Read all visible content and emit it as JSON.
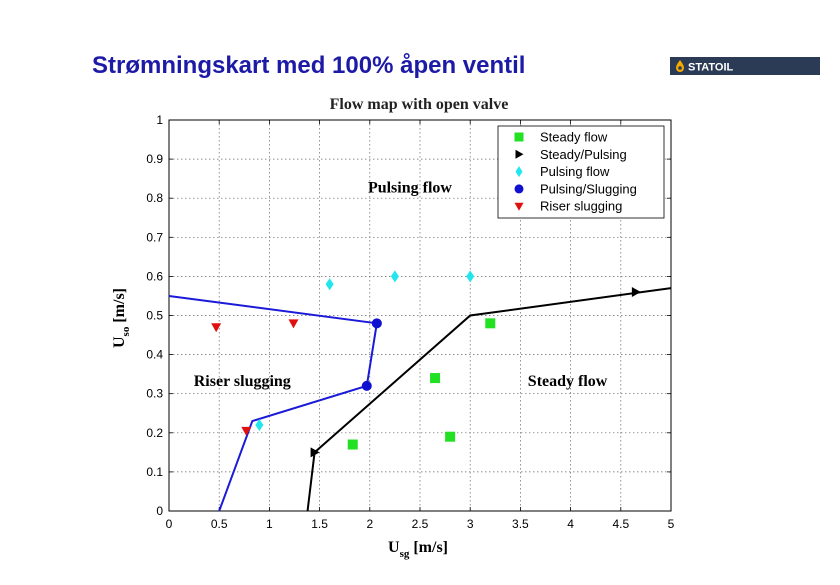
{
  "slide": {
    "title": "Strømningskart med 100% åpen ventil",
    "logo_text": "STATOIL",
    "colors": {
      "title": "#1d1aa6",
      "logo_bg": "#2b3a55",
      "logo_mark": "#f2a900"
    }
  },
  "chart_data": {
    "type": "scatter",
    "title": "Flow map with open valve",
    "xlabel_main": "U",
    "xlabel_sub": "sg",
    "xlabel_unit": "[m/s]",
    "ylabel_main": "U",
    "ylabel_sub": "so",
    "ylabel_unit": "[m/s]",
    "xlim": [
      0,
      5
    ],
    "ylim": [
      0,
      1
    ],
    "xticks": [
      "0",
      "0.5",
      "1",
      "1.5",
      "2",
      "2.5",
      "3",
      "3.5",
      "4",
      "4.5",
      "5"
    ],
    "yticks": [
      "0",
      "0.1",
      "0.2",
      "0.3",
      "0.4",
      "0.5",
      "0.6",
      "0.7",
      "0.8",
      "0.9",
      "1"
    ],
    "grid": true,
    "legend_position": "top-right",
    "series": [
      {
        "name": "Steady flow",
        "marker": "square",
        "color": "#22e022",
        "points": [
          [
            1.83,
            0.17
          ],
          [
            2.65,
            0.34
          ],
          [
            2.8,
            0.19
          ],
          [
            3.2,
            0.48
          ]
        ]
      },
      {
        "name": "Steady/Pulsing",
        "marker": "triangle-right",
        "color": "#000000",
        "points": [
          [
            1.45,
            0.15
          ],
          [
            4.65,
            0.56
          ]
        ]
      },
      {
        "name": "Pulsing flow",
        "marker": "diamond",
        "color": "#22e6ee",
        "points": [
          [
            0.9,
            0.22
          ],
          [
            1.6,
            0.58
          ],
          [
            2.25,
            0.6
          ],
          [
            3.0,
            0.6
          ]
        ]
      },
      {
        "name": "Pulsing/Slugging",
        "marker": "circle",
        "color": "#1010d0",
        "points": [
          [
            1.97,
            0.32
          ],
          [
            2.07,
            0.48
          ]
        ]
      },
      {
        "name": "Riser slugging",
        "marker": "triangle-down",
        "color": "#e01010",
        "points": [
          [
            0.47,
            0.47
          ],
          [
            0.77,
            0.205
          ],
          [
            1.24,
            0.48
          ]
        ]
      }
    ],
    "boundaries": [
      {
        "color": "#1a1ad8",
        "points": [
          [
            0.5,
            0.0
          ],
          [
            0.83,
            0.23
          ],
          [
            1.97,
            0.32
          ],
          [
            2.07,
            0.48
          ],
          [
            0.0,
            0.55
          ]
        ]
      },
      {
        "color": "#000000",
        "points": [
          [
            1.38,
            0.0
          ],
          [
            1.45,
            0.15
          ],
          [
            3.0,
            0.5
          ],
          [
            5.0,
            0.57
          ]
        ]
      }
    ],
    "annotations": [
      {
        "text": "Pulsing flow",
        "x": 2.4,
        "y": 0.83
      },
      {
        "text": "Riser slugging",
        "x": 0.73,
        "y": 0.335
      },
      {
        "text": "Steady flow",
        "x": 3.97,
        "y": 0.335
      }
    ]
  }
}
